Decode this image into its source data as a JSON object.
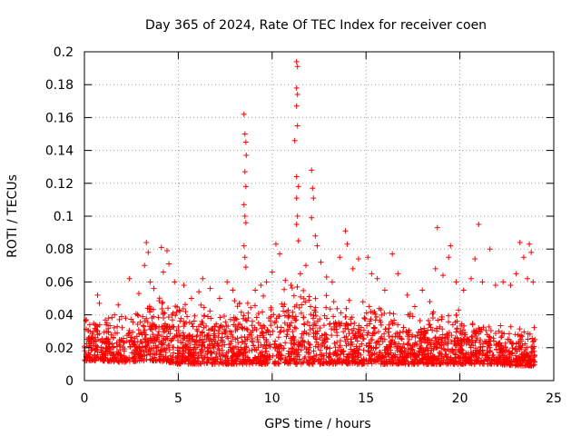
{
  "chart_data": {
    "type": "scatter",
    "title": "Day 365 of 2024, Rate Of TEC Index for receiver coen",
    "xlabel": "GPS time / hours",
    "ylabel": "ROTI / TECUs",
    "xlim": [
      0,
      25
    ],
    "ylim": [
      0,
      0.2
    ],
    "xticks": [
      0,
      5,
      10,
      15,
      20,
      25
    ],
    "yticks": [
      0,
      0.02,
      0.04,
      0.06,
      0.08,
      0.1,
      0.12,
      0.14,
      0.16,
      0.18,
      0.2
    ],
    "xtick_labels": [
      "0",
      "5",
      "10",
      "15",
      "20",
      "25"
    ],
    "ytick_labels": [
      "0",
      "0.02",
      "0.04",
      "0.06",
      "0.08",
      "0.1",
      "0.12",
      "0.14",
      "0.16",
      "0.18",
      "0.2"
    ],
    "grid": true,
    "marker": "+",
    "color": "#ff0000",
    "series": [
      {
        "name": "ROTI",
        "points": [
          [
            0.1,
            0.037
          ],
          [
            0.3,
            0.03
          ],
          [
            0.7,
            0.052
          ],
          [
            0.8,
            0.047
          ],
          [
            1.2,
            0.035
          ],
          [
            1.6,
            0.04
          ],
          [
            1.8,
            0.046
          ],
          [
            2.2,
            0.038
          ],
          [
            2.4,
            0.062
          ],
          [
            2.9,
            0.053
          ],
          [
            3.2,
            0.07
          ],
          [
            3.3,
            0.084
          ],
          [
            3.4,
            0.078
          ],
          [
            3.5,
            0.06
          ],
          [
            3.7,
            0.056
          ],
          [
            4.1,
            0.081
          ],
          [
            4.2,
            0.066
          ],
          [
            4.4,
            0.079
          ],
          [
            4.5,
            0.071
          ],
          [
            4.8,
            0.06
          ],
          [
            5.3,
            0.058
          ],
          [
            5.7,
            0.05
          ],
          [
            6.1,
            0.054
          ],
          [
            6.3,
            0.062
          ],
          [
            6.7,
            0.056
          ],
          [
            7.2,
            0.05
          ],
          [
            7.6,
            0.06
          ],
          [
            7.9,
            0.055
          ],
          [
            8.5,
            0.162
          ],
          [
            8.55,
            0.15
          ],
          [
            8.6,
            0.145
          ],
          [
            8.62,
            0.137
          ],
          [
            8.55,
            0.127
          ],
          [
            8.6,
            0.118
          ],
          [
            8.5,
            0.107
          ],
          [
            8.55,
            0.1
          ],
          [
            8.6,
            0.096
          ],
          [
            8.5,
            0.082
          ],
          [
            8.55,
            0.075
          ],
          [
            8.6,
            0.069
          ],
          [
            8.7,
            0.047
          ],
          [
            9.1,
            0.055
          ],
          [
            9.4,
            0.058
          ],
          [
            9.7,
            0.06
          ],
          [
            10.0,
            0.066
          ],
          [
            10.2,
            0.083
          ],
          [
            10.4,
            0.077
          ],
          [
            10.7,
            0.061
          ],
          [
            11.0,
            0.058
          ],
          [
            11.2,
            0.146
          ],
          [
            11.3,
            0.194
          ],
          [
            11.35,
            0.191
          ],
          [
            11.3,
            0.178
          ],
          [
            11.35,
            0.174
          ],
          [
            11.3,
            0.167
          ],
          [
            11.35,
            0.155
          ],
          [
            11.3,
            0.124
          ],
          [
            11.4,
            0.118
          ],
          [
            11.3,
            0.111
          ],
          [
            11.35,
            0.1
          ],
          [
            11.3,
            0.095
          ],
          [
            11.4,
            0.085
          ],
          [
            11.5,
            0.065
          ],
          [
            11.8,
            0.07
          ],
          [
            12.1,
            0.128
          ],
          [
            12.15,
            0.117
          ],
          [
            12.2,
            0.111
          ],
          [
            12.1,
            0.099
          ],
          [
            12.3,
            0.088
          ],
          [
            12.4,
            0.082
          ],
          [
            12.6,
            0.072
          ],
          [
            12.9,
            0.063
          ],
          [
            13.2,
            0.06
          ],
          [
            13.6,
            0.075
          ],
          [
            13.9,
            0.091
          ],
          [
            14.0,
            0.083
          ],
          [
            14.3,
            0.068
          ],
          [
            14.6,
            0.074
          ],
          [
            15.1,
            0.075
          ],
          [
            15.3,
            0.065
          ],
          [
            15.6,
            0.062
          ],
          [
            16.0,
            0.055
          ],
          [
            16.4,
            0.077
          ],
          [
            16.7,
            0.065
          ],
          [
            17.2,
            0.052
          ],
          [
            17.6,
            0.045
          ],
          [
            18.0,
            0.055
          ],
          [
            18.4,
            0.048
          ],
          [
            18.7,
            0.068
          ],
          [
            18.8,
            0.093
          ],
          [
            19.1,
            0.064
          ],
          [
            19.4,
            0.075
          ],
          [
            19.5,
            0.082
          ],
          [
            19.8,
            0.06
          ],
          [
            20.2,
            0.055
          ],
          [
            20.6,
            0.062
          ],
          [
            20.8,
            0.074
          ],
          [
            21.0,
            0.095
          ],
          [
            21.2,
            0.06
          ],
          [
            21.6,
            0.08
          ],
          [
            21.9,
            0.058
          ],
          [
            22.3,
            0.06
          ],
          [
            22.7,
            0.058
          ],
          [
            23.0,
            0.065
          ],
          [
            23.2,
            0.084
          ],
          [
            23.4,
            0.075
          ],
          [
            23.6,
            0.062
          ],
          [
            23.7,
            0.083
          ],
          [
            23.8,
            0.078
          ],
          [
            23.9,
            0.06
          ]
        ],
        "baseline_envelope": [
          [
            0,
            0.012,
            0.032
          ],
          [
            1,
            0.012,
            0.033
          ],
          [
            2,
            0.011,
            0.035
          ],
          [
            3,
            0.012,
            0.04
          ],
          [
            4,
            0.012,
            0.045
          ],
          [
            5,
            0.01,
            0.042
          ],
          [
            6,
            0.01,
            0.04
          ],
          [
            7,
            0.01,
            0.04
          ],
          [
            8,
            0.01,
            0.042
          ],
          [
            9,
            0.01,
            0.044
          ],
          [
            10,
            0.01,
            0.048
          ],
          [
            11,
            0.01,
            0.05
          ],
          [
            12,
            0.01,
            0.048
          ],
          [
            13,
            0.01,
            0.045
          ],
          [
            14,
            0.01,
            0.045
          ],
          [
            15,
            0.01,
            0.042
          ],
          [
            16,
            0.01,
            0.04
          ],
          [
            17,
            0.01,
            0.035
          ],
          [
            18,
            0.01,
            0.035
          ],
          [
            19,
            0.01,
            0.042
          ],
          [
            20,
            0.01,
            0.035
          ],
          [
            21,
            0.01,
            0.032
          ],
          [
            22,
            0.01,
            0.03
          ],
          [
            23,
            0.009,
            0.028
          ],
          [
            24,
            0.009,
            0.028
          ]
        ]
      }
    ]
  }
}
